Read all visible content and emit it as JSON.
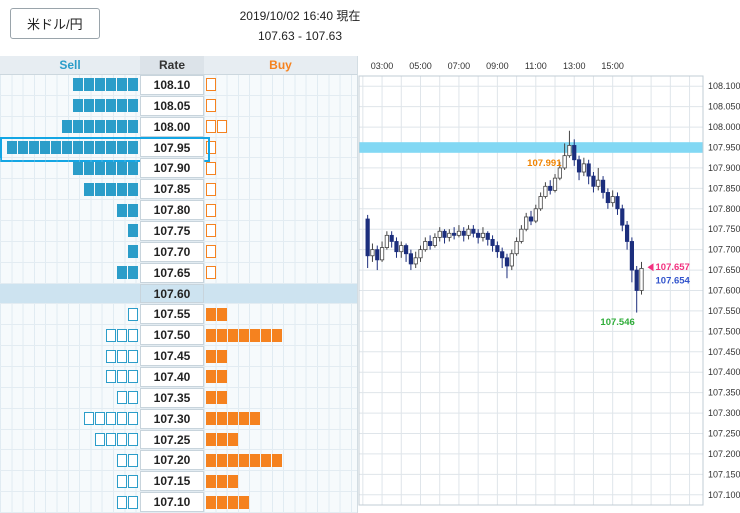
{
  "header": {
    "pair_button": "米ドル/円",
    "timestamp": "2019/10/02 16:40 現在",
    "quote": "107.63 - 107.63"
  },
  "colors": {
    "sell": "#2b9dc9",
    "buy": "#f5821f",
    "selected_border": "#14a6e4",
    "mid_row_bg": "#cde3f0",
    "band": "#82d8f4",
    "candle_down": "#1c2e7d",
    "candle_up_fill": "#ffffff",
    "candle_stroke": "#444444",
    "annotation_high": "#f08300",
    "annotation_ask": "#f2317f",
    "annotation_bid": "#3355cc",
    "annotation_low": "#2fad39"
  },
  "orderbook": {
    "headers": {
      "sell": "Sell",
      "rate": "Rate",
      "buy": "Buy"
    },
    "rows": [
      {
        "rate": "108.10",
        "sell_filled": 6,
        "sell_hollow": 0,
        "buy_filled": 0,
        "buy_hollow": 1
      },
      {
        "rate": "108.05",
        "sell_filled": 6,
        "sell_hollow": 0,
        "buy_filled": 0,
        "buy_hollow": 1
      },
      {
        "rate": "108.00",
        "sell_filled": 7,
        "sell_hollow": 0,
        "buy_filled": 0,
        "buy_hollow": 2
      },
      {
        "rate": "107.95",
        "sell_filled": 12,
        "sell_hollow": 0,
        "buy_filled": 0,
        "buy_hollow": 1,
        "selected": true
      },
      {
        "rate": "107.90",
        "sell_filled": 6,
        "sell_hollow": 0,
        "buy_filled": 0,
        "buy_hollow": 1
      },
      {
        "rate": "107.85",
        "sell_filled": 5,
        "sell_hollow": 0,
        "buy_filled": 0,
        "buy_hollow": 1
      },
      {
        "rate": "107.80",
        "sell_filled": 2,
        "sell_hollow": 0,
        "buy_filled": 0,
        "buy_hollow": 1
      },
      {
        "rate": "107.75",
        "sell_filled": 1,
        "sell_hollow": 0,
        "buy_filled": 0,
        "buy_hollow": 1
      },
      {
        "rate": "107.70",
        "sell_filled": 1,
        "sell_hollow": 0,
        "buy_filled": 0,
        "buy_hollow": 1
      },
      {
        "rate": "107.65",
        "sell_filled": 2,
        "sell_hollow": 0,
        "buy_filled": 0,
        "buy_hollow": 1
      },
      {
        "rate": "107.60",
        "sell_filled": 0,
        "sell_hollow": 0,
        "buy_filled": 0,
        "buy_hollow": 0,
        "mid": true
      },
      {
        "rate": "107.55",
        "sell_filled": 0,
        "sell_hollow": 1,
        "buy_filled": 2,
        "buy_hollow": 0
      },
      {
        "rate": "107.50",
        "sell_filled": 0,
        "sell_hollow": 3,
        "buy_filled": 7,
        "buy_hollow": 0
      },
      {
        "rate": "107.45",
        "sell_filled": 0,
        "sell_hollow": 3,
        "buy_filled": 2,
        "buy_hollow": 0
      },
      {
        "rate": "107.40",
        "sell_filled": 0,
        "sell_hollow": 3,
        "buy_filled": 2,
        "buy_hollow": 0
      },
      {
        "rate": "107.35",
        "sell_filled": 0,
        "sell_hollow": 2,
        "buy_filled": 2,
        "buy_hollow": 0
      },
      {
        "rate": "107.30",
        "sell_filled": 0,
        "sell_hollow": 5,
        "buy_filled": 5,
        "buy_hollow": 0
      },
      {
        "rate": "107.25",
        "sell_filled": 0,
        "sell_hollow": 4,
        "buy_filled": 3,
        "buy_hollow": 0
      },
      {
        "rate": "107.20",
        "sell_filled": 0,
        "sell_hollow": 2,
        "buy_filled": 7,
        "buy_hollow": 0
      },
      {
        "rate": "107.15",
        "sell_filled": 0,
        "sell_hollow": 2,
        "buy_filled": 3,
        "buy_hollow": 0
      },
      {
        "rate": "107.10",
        "sell_filled": 0,
        "sell_hollow": 2,
        "buy_filled": 4,
        "buy_hollow": 0
      }
    ]
  },
  "chart_data": {
    "type": "candlestick",
    "pair": "USD/JPY",
    "x_axis": {
      "unit": "hour",
      "labels": [
        "03:00",
        "05:00",
        "07:00",
        "09:00",
        "11:00",
        "13:00",
        "15:00"
      ],
      "label_hours": [
        3,
        5,
        7,
        9,
        11,
        13,
        15
      ],
      "gridline_every": 1,
      "min_hour": 1.8,
      "max_hour": 19.7
    },
    "y_axis": {
      "min": 107.1,
      "max": 108.1,
      "tick_step": 0.05,
      "domain_min": 107.075,
      "domain_max": 108.125,
      "ticks": [
        "108.100",
        "108.050",
        "108.000",
        "107.950",
        "107.900",
        "107.850",
        "107.800",
        "107.750",
        "107.700",
        "107.650",
        "107.600",
        "107.550",
        "107.500",
        "107.450",
        "107.400",
        "107.350",
        "107.300",
        "107.250",
        "107.200",
        "107.150",
        "107.100"
      ]
    },
    "band": {
      "price": 107.95,
      "half_height": 0.013,
      "color": "#82d8f4"
    },
    "candle_format": [
      "hour",
      "open",
      "high",
      "low",
      "close"
    ],
    "candles": [
      [
        2.25,
        107.775,
        107.785,
        107.655,
        107.685
      ],
      [
        2.5,
        107.685,
        107.715,
        107.67,
        107.7
      ],
      [
        2.75,
        107.7,
        107.71,
        107.65,
        107.675
      ],
      [
        3.0,
        107.675,
        107.72,
        107.67,
        107.705
      ],
      [
        3.25,
        107.705,
        107.745,
        107.7,
        107.735
      ],
      [
        3.5,
        107.735,
        107.745,
        107.705,
        107.72
      ],
      [
        3.75,
        107.72,
        107.73,
        107.68,
        107.695
      ],
      [
        4.0,
        107.695,
        107.72,
        107.68,
        107.71
      ],
      [
        4.25,
        107.71,
        107.715,
        107.67,
        107.69
      ],
      [
        4.5,
        107.69,
        107.7,
        107.65,
        107.665
      ],
      [
        4.75,
        107.665,
        107.695,
        107.655,
        107.68
      ],
      [
        5.0,
        107.68,
        107.71,
        107.67,
        107.7
      ],
      [
        5.25,
        107.7,
        107.73,
        107.695,
        107.72
      ],
      [
        5.5,
        107.72,
        107.735,
        107.7,
        107.71
      ],
      [
        5.75,
        107.71,
        107.74,
        107.705,
        107.73
      ],
      [
        6.0,
        107.73,
        107.755,
        107.72,
        107.745
      ],
      [
        6.25,
        107.745,
        107.75,
        107.715,
        107.73
      ],
      [
        6.5,
        107.73,
        107.75,
        107.72,
        107.74
      ],
      [
        6.75,
        107.74,
        107.755,
        107.725,
        107.735
      ],
      [
        7.0,
        107.735,
        107.76,
        107.73,
        107.745
      ],
      [
        7.25,
        107.745,
        107.755,
        107.72,
        107.735
      ],
      [
        7.5,
        107.735,
        107.76,
        107.725,
        107.75
      ],
      [
        7.75,
        107.75,
        107.76,
        107.73,
        107.74
      ],
      [
        8.0,
        107.74,
        107.75,
        107.715,
        107.73
      ],
      [
        8.25,
        107.73,
        107.755,
        107.72,
        107.74
      ],
      [
        8.5,
        107.74,
        107.745,
        107.71,
        107.725
      ],
      [
        8.75,
        107.725,
        107.735,
        107.695,
        107.71
      ],
      [
        9.0,
        107.71,
        107.72,
        107.68,
        107.695
      ],
      [
        9.25,
        107.695,
        107.705,
        107.655,
        107.68
      ],
      [
        9.5,
        107.68,
        107.69,
        107.63,
        107.66
      ],
      [
        9.75,
        107.66,
        107.7,
        107.65,
        107.69
      ],
      [
        10.0,
        107.69,
        107.73,
        107.685,
        107.72
      ],
      [
        10.25,
        107.72,
        107.76,
        107.715,
        107.75
      ],
      [
        10.5,
        107.75,
        107.79,
        107.745,
        107.78
      ],
      [
        10.75,
        107.78,
        107.795,
        107.76,
        107.77
      ],
      [
        11.0,
        107.77,
        107.81,
        107.765,
        107.8
      ],
      [
        11.25,
        107.8,
        107.84,
        107.795,
        107.83
      ],
      [
        11.5,
        107.83,
        107.865,
        107.825,
        107.855
      ],
      [
        11.75,
        107.855,
        107.87,
        107.835,
        107.845
      ],
      [
        12.0,
        107.845,
        107.885,
        107.84,
        107.875
      ],
      [
        12.25,
        107.875,
        107.915,
        107.87,
        107.9
      ],
      [
        12.5,
        107.9,
        107.96,
        107.895,
        107.93
      ],
      [
        12.75,
        107.93,
        107.991,
        107.925,
        107.955
      ],
      [
        13.0,
        107.955,
        107.97,
        107.905,
        107.92
      ],
      [
        13.25,
        107.92,
        107.93,
        107.87,
        107.89
      ],
      [
        13.5,
        107.89,
        107.925,
        107.88,
        107.91
      ],
      [
        13.75,
        107.91,
        107.92,
        107.86,
        107.88
      ],
      [
        14.0,
        107.88,
        107.89,
        107.84,
        107.855
      ],
      [
        14.25,
        107.855,
        107.9,
        107.845,
        107.87
      ],
      [
        14.5,
        107.87,
        107.88,
        107.825,
        107.84
      ],
      [
        14.75,
        107.84,
        107.85,
        107.8,
        107.815
      ],
      [
        15.0,
        107.815,
        107.845,
        107.805,
        107.83
      ],
      [
        15.25,
        107.83,
        107.84,
        107.785,
        107.8
      ],
      [
        15.5,
        107.8,
        107.81,
        107.745,
        107.76
      ],
      [
        15.75,
        107.76,
        107.77,
        107.7,
        107.72
      ],
      [
        16.0,
        107.72,
        107.73,
        107.62,
        107.65
      ],
      [
        16.25,
        107.65,
        107.66,
        107.546,
        107.6
      ],
      [
        16.5,
        107.6,
        107.67,
        107.59,
        107.654
      ]
    ],
    "annotations": [
      {
        "type": "high",
        "text": "107.991",
        "t": 10.55,
        "price": 107.905,
        "color_key": "annotation_high"
      },
      {
        "type": "ask",
        "text": "107.657",
        "price": 107.657,
        "arrow": true,
        "color_key": "annotation_ask"
      },
      {
        "type": "bid",
        "text": "107.654",
        "price": 107.625,
        "color_key": "annotation_bid"
      },
      {
        "type": "low",
        "text": "107.546",
        "t": 16.15,
        "price": 107.515,
        "color_key": "annotation_low"
      }
    ]
  }
}
